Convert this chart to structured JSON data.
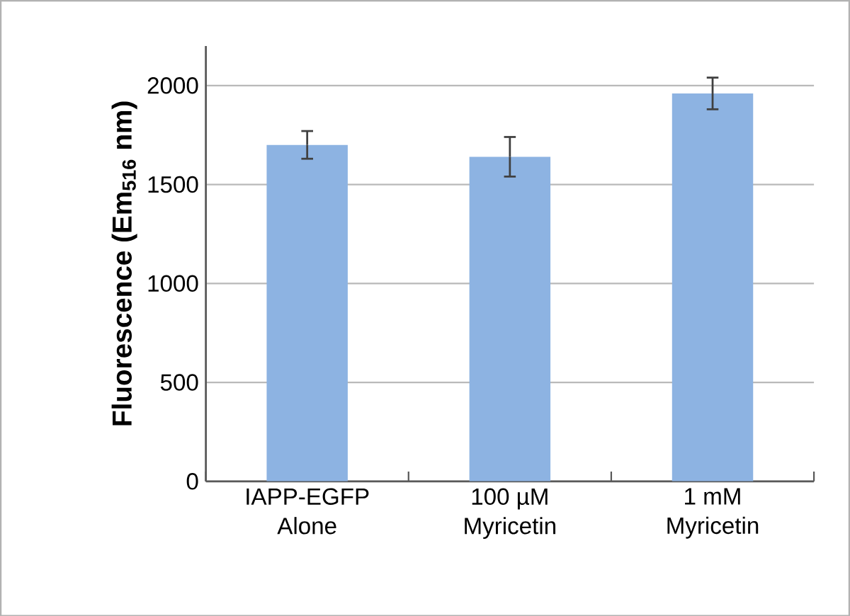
{
  "chart_data": {
    "type": "bar",
    "ylabel": "Fluorescence (Em$_{516}$ nm)",
    "categories": [
      "IAPP-EGFP\nAlone",
      "100 µM\nMyricetin",
      "1 mM\nMyricetin"
    ],
    "values": [
      1700,
      1640,
      1960
    ],
    "errors": [
      70,
      100,
      80
    ],
    "color": "#8db3e2",
    "ylim": [
      0,
      2200
    ],
    "yticks": [
      0,
      500,
      1000,
      1500,
      2000
    ],
    "grid": "y"
  }
}
